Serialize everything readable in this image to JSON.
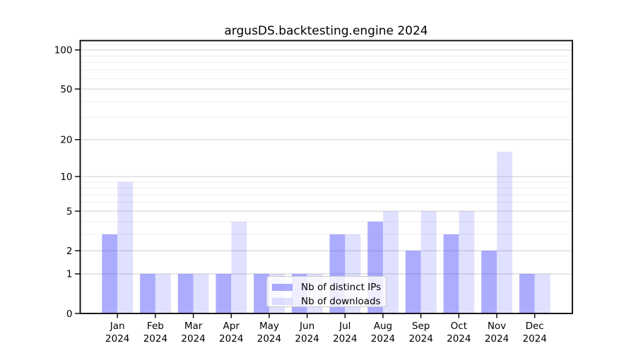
{
  "title": "argusDS.backtesting.engine 2024",
  "legend": {
    "items": [
      {
        "label": "Nb of distinct IPs"
      },
      {
        "label": "Nb of downloads"
      }
    ]
  },
  "axes": {
    "y_tick_labels": [
      "0",
      "1",
      "2",
      "5",
      "10",
      "20",
      "50",
      "100"
    ],
    "x_year_label": "2024"
  },
  "colors": {
    "bar_base": "#4646ff",
    "distinct_ips_solid": "#acacf8",
    "downloads_solid": "#dcdcfa",
    "grid_major": "#d4d4d4",
    "grid_minor": "#efefef",
    "axis_line": "#000000",
    "legend_border": "#cccccc"
  },
  "chart_data": {
    "type": "bar",
    "title": "argusDS.backtesting.engine 2024",
    "categories": [
      "Jan 2024",
      "Feb 2024",
      "Mar 2024",
      "Apr 2024",
      "May 2024",
      "Jun 2024",
      "Jul 2024",
      "Aug 2024",
      "Sep 2024",
      "Oct 2024",
      "Nov 2024",
      "Dec 2024"
    ],
    "series": [
      {
        "name": "Nb of distinct IPs",
        "opacity": 0.45,
        "values": [
          3,
          1,
          1,
          1,
          1,
          1,
          3,
          4,
          2,
          3,
          2,
          1
        ]
      },
      {
        "name": "Nb of downloads",
        "opacity": 0.17,
        "values": [
          9,
          1,
          1,
          4,
          1,
          1,
          3,
          5,
          5,
          5,
          16,
          1
        ]
      }
    ],
    "xlabel": "",
    "ylabel": "",
    "y_scale": "log10(1+v)",
    "y_ticks": [
      0,
      1,
      2,
      5,
      10,
      20,
      50,
      100
    ],
    "y_minor_gridlines": [
      3,
      4,
      6,
      7,
      8,
      9,
      30,
      40,
      60,
      70,
      80,
      90,
      110
    ],
    "ylim": [
      0,
      118
    ],
    "grid": true,
    "legend_position": "lower center"
  }
}
